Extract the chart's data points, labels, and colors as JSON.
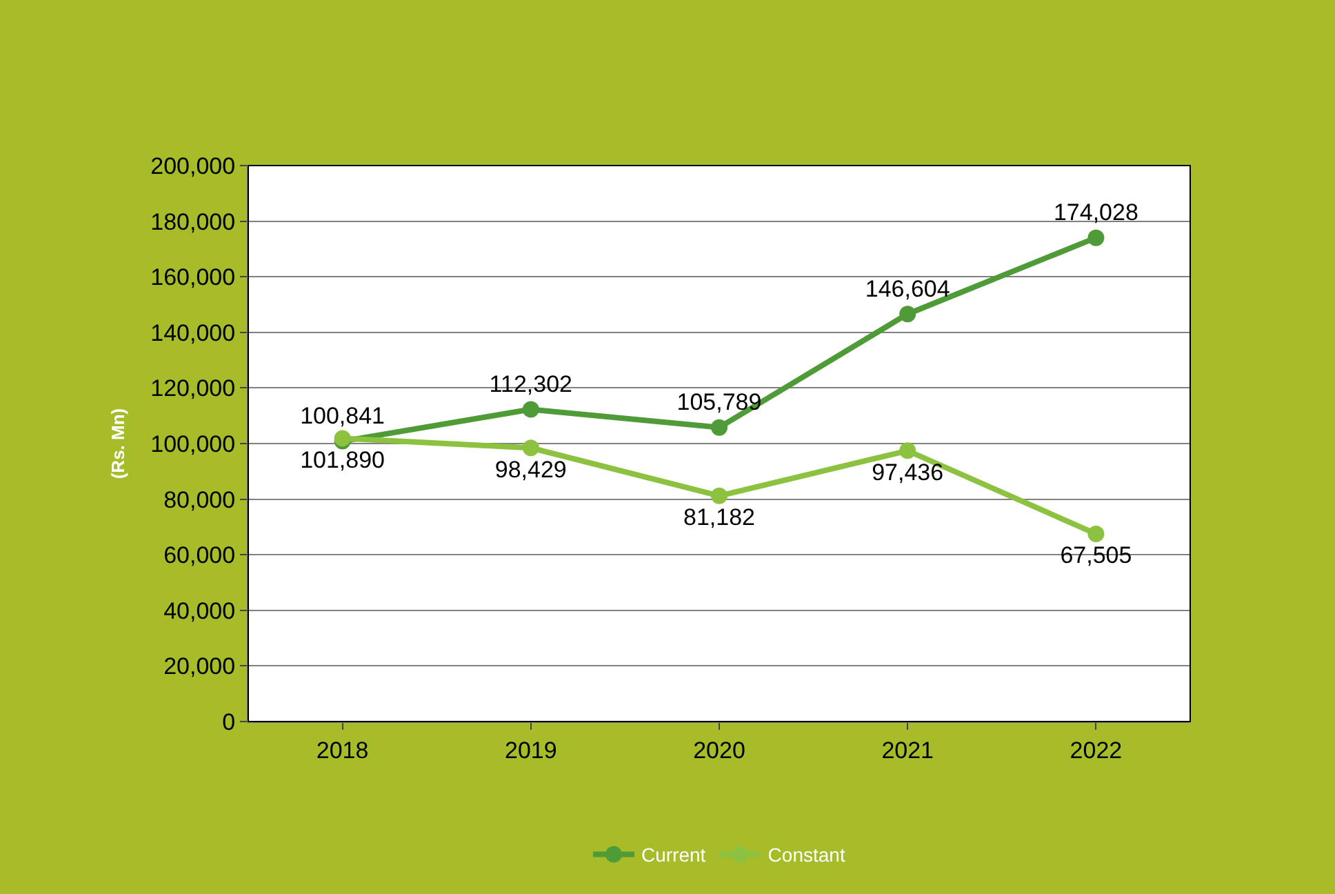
{
  "chart_data": {
    "type": "line",
    "ylabel": "(Rs. Mn)",
    "categories": [
      "2018",
      "2019",
      "2020",
      "2021",
      "2022"
    ],
    "series": [
      {
        "name": "Current",
        "color": "#4f9b38",
        "values": [
          100841,
          112302,
          105789,
          146604,
          174028
        ],
        "value_labels": [
          "100,841",
          "112,302",
          "105,789",
          "146,604",
          "174,028"
        ]
      },
      {
        "name": "Constant",
        "color": "#8cc23f",
        "values": [
          101890,
          98429,
          81182,
          97436,
          67505
        ],
        "value_labels": [
          "101,890",
          "98,429",
          "81,182",
          "97,436",
          "67,505"
        ]
      }
    ],
    "ylim": [
      0,
      200000
    ],
    "yticks": [
      0,
      {
        "value": 20000,
        "label": "20,000"
      },
      {
        "value": 40000,
        "label": "40,000"
      },
      {
        "value": 60000,
        "label": "60,000"
      },
      {
        "value": 80000,
        "label": "80,000"
      },
      {
        "value": 100000,
        "label": "100,000"
      },
      {
        "value": 120000,
        "label": "120,000"
      },
      {
        "value": 140000,
        "label": "140,000"
      },
      {
        "value": 160000,
        "label": "160,000"
      },
      {
        "value": 180000,
        "label": "180,000"
      },
      {
        "value": 200000,
        "label": "200,000"
      }
    ],
    "grid": "y",
    "legend": "bottom",
    "marker": "circle",
    "line_style": "solid"
  }
}
